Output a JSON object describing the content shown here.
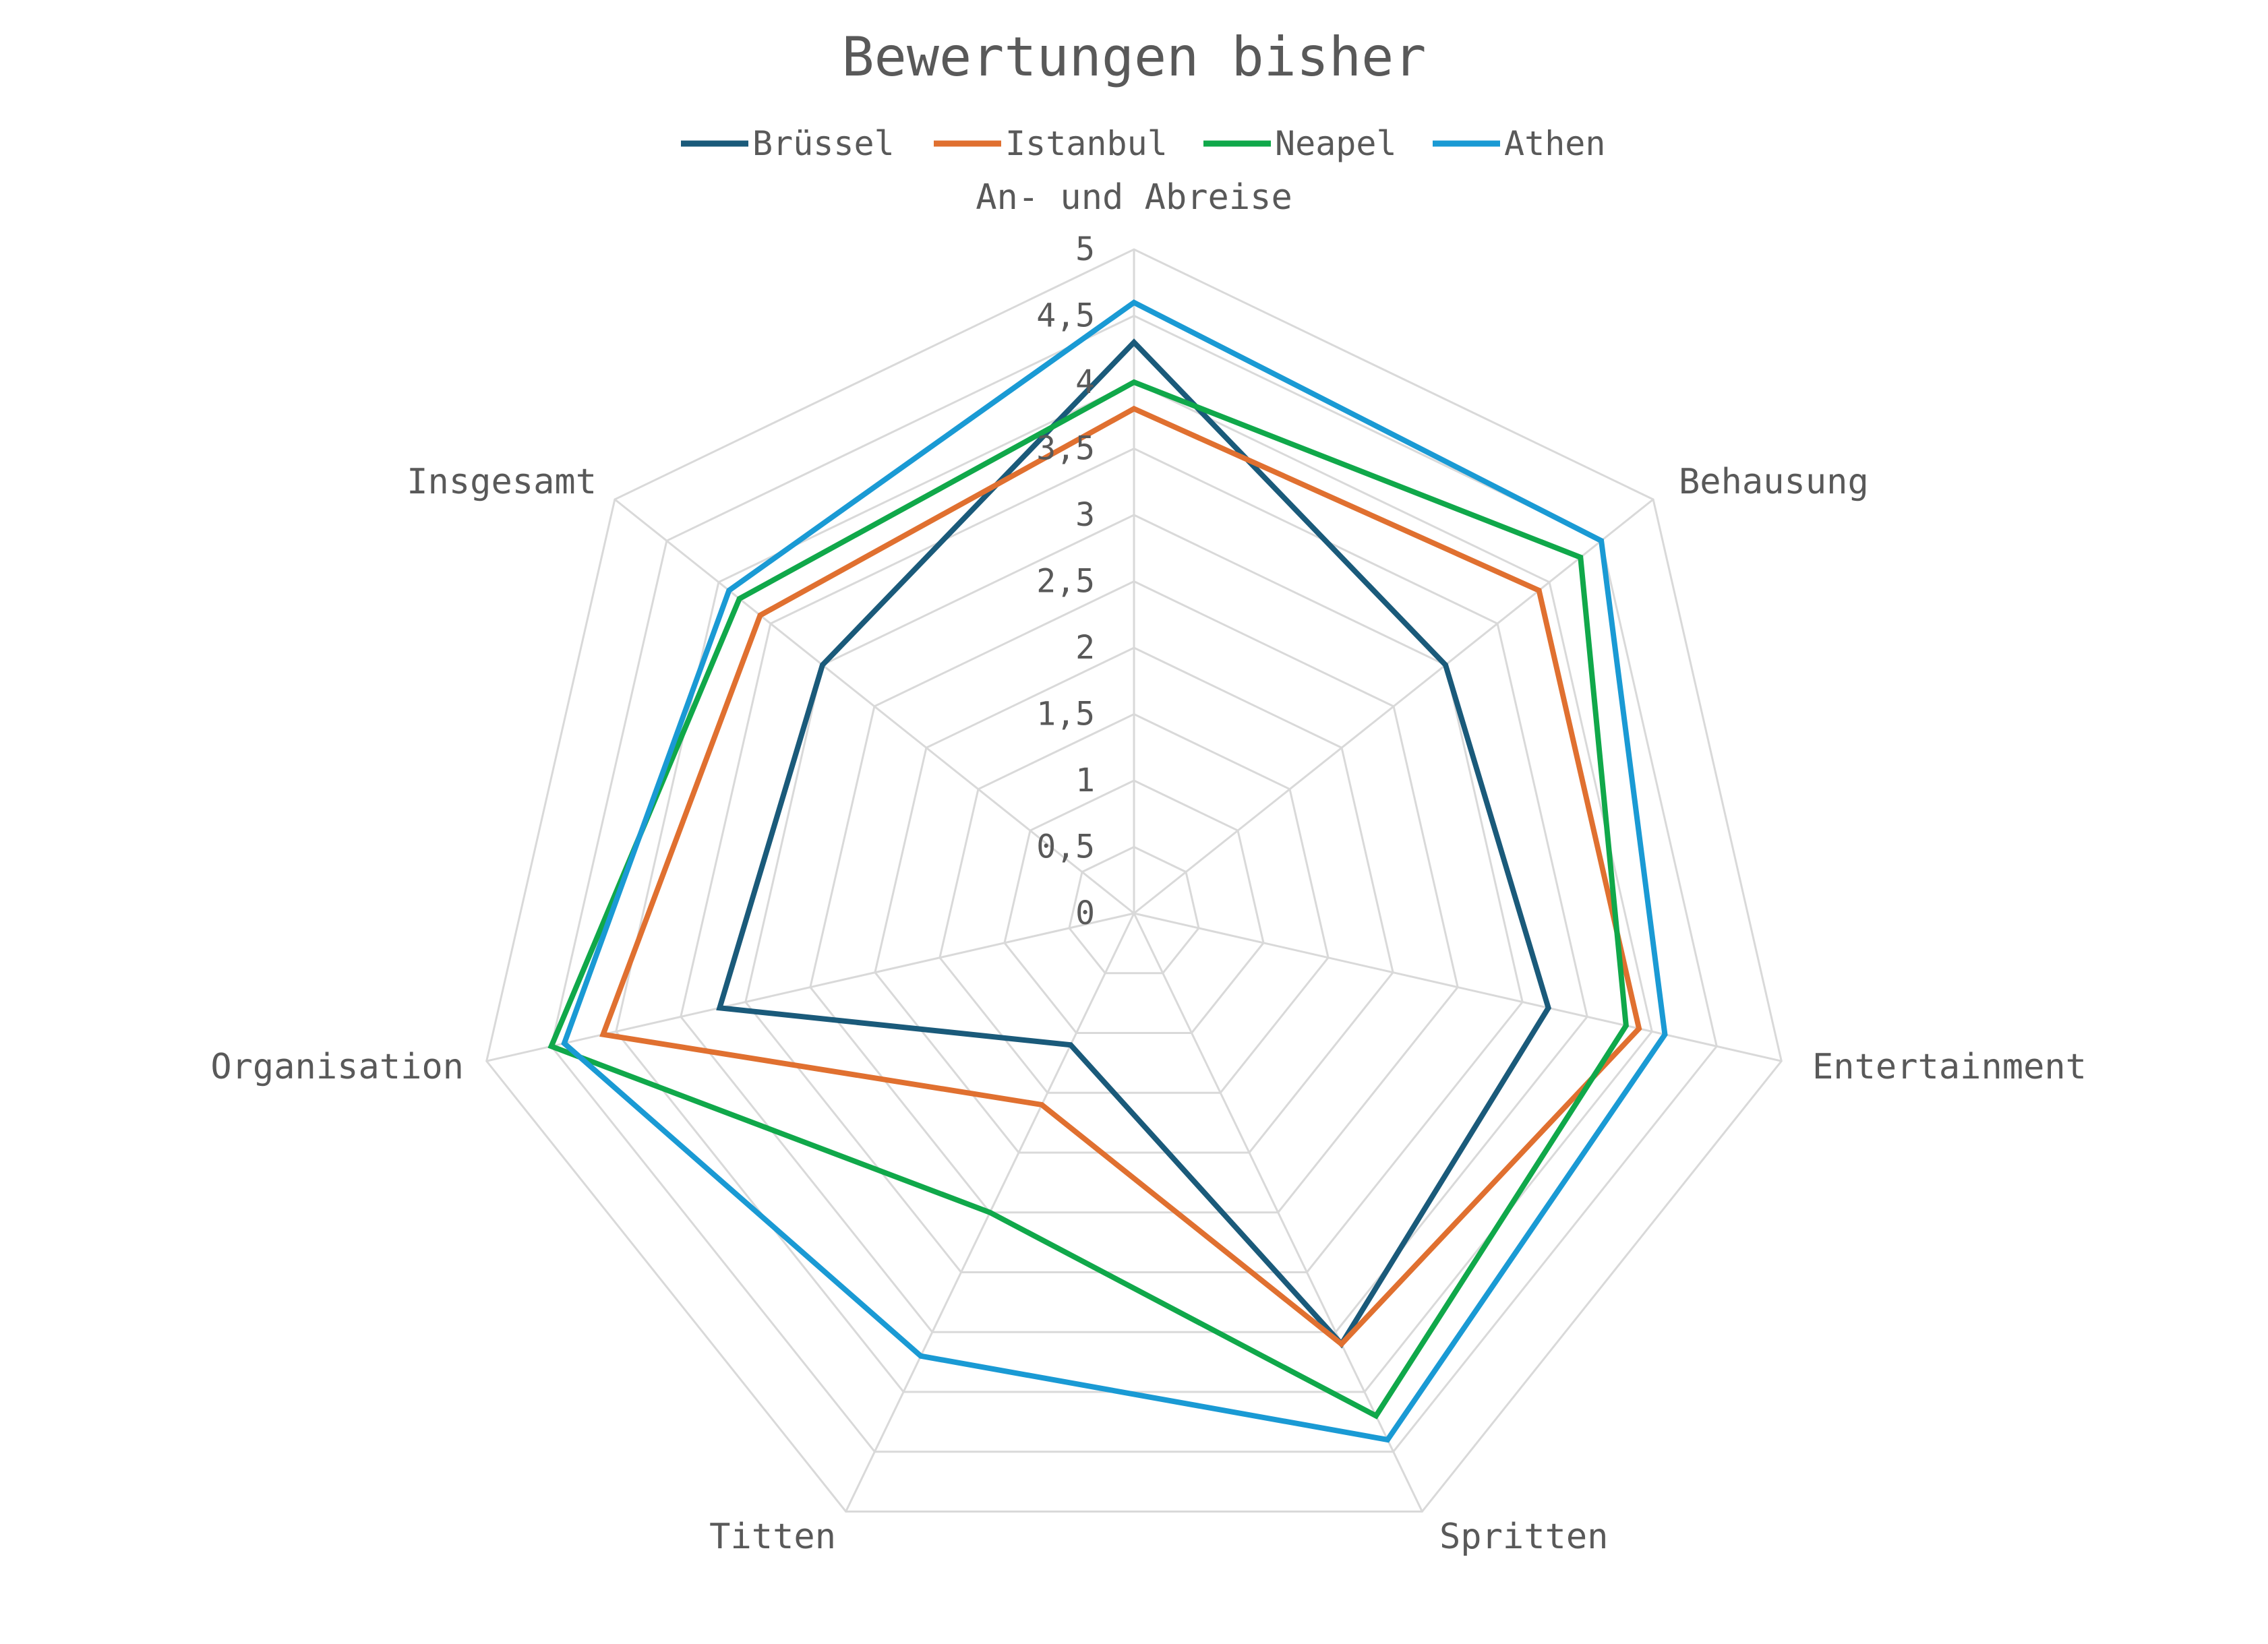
{
  "chart_data": {
    "type": "radar",
    "title": "Bewertungen bisher",
    "legend_position": "top",
    "categories": [
      "An- und Abreise",
      "Behausung",
      "Entertainment",
      "Spritten",
      "Titten",
      "Organisation",
      "Insgesamt"
    ],
    "r_ticks": [
      "0",
      "0,5",
      "1",
      "1,5",
      "2",
      "2,5",
      "3",
      "3,5",
      "4",
      "4,5",
      "5"
    ],
    "rlim": [
      0,
      5
    ],
    "grid": true,
    "series": [
      {
        "name": "Brüssel",
        "color": "#1a5a7a",
        "values": [
          4.3,
          3.0,
          3.2,
          3.6,
          1.1,
          3.2,
          3.0
        ]
      },
      {
        "name": "Istanbul",
        "color": "#e07030",
        "values": [
          3.8,
          3.9,
          3.9,
          3.6,
          1.6,
          4.1,
          3.6
        ]
      },
      {
        "name": "Neapel",
        "color": "#10a84a",
        "values": [
          4.0,
          4.3,
          3.8,
          4.2,
          2.5,
          4.5,
          3.8
        ]
      },
      {
        "name": "Athen",
        "color": "#1a9ad4",
        "values": [
          4.6,
          4.5,
          4.1,
          4.4,
          3.7,
          4.4,
          3.9
        ]
      }
    ]
  }
}
